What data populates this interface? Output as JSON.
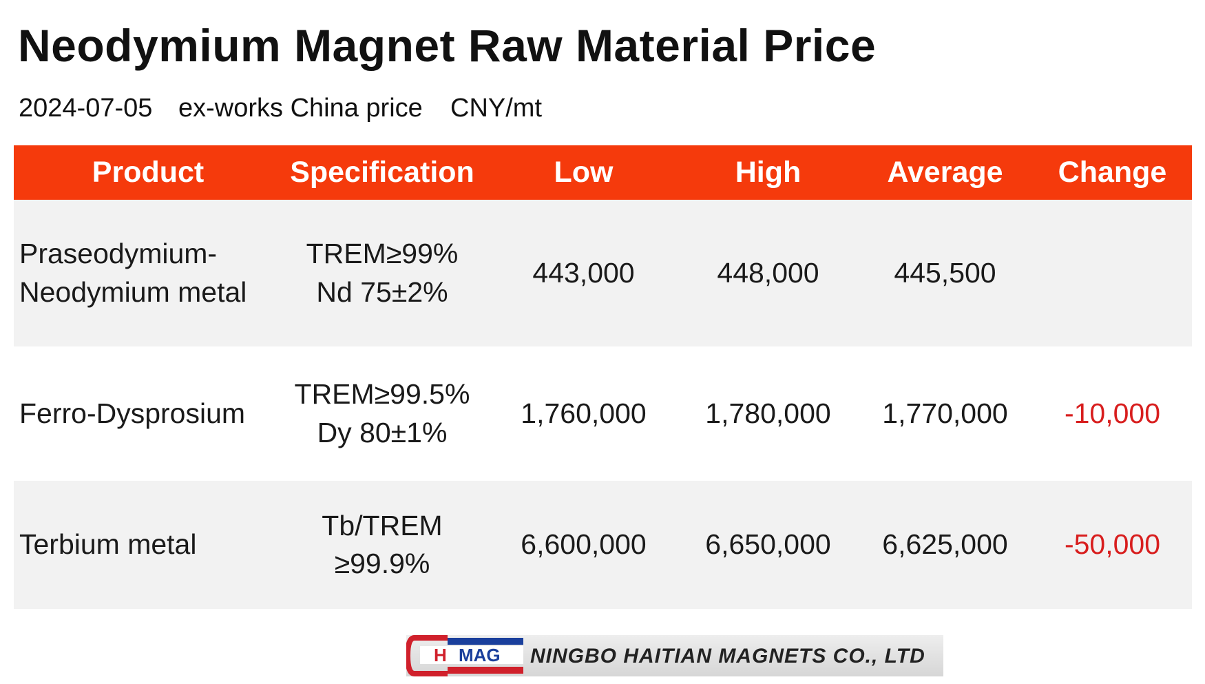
{
  "header": {
    "title": "Neodymium Magnet Raw Material Price",
    "date": "2024-07-05",
    "basis": "ex-works China price",
    "unit": "CNY/mt"
  },
  "table": {
    "columns": [
      "Product",
      "Specification",
      "Low",
      "High",
      "Average",
      "Change"
    ],
    "rows": [
      {
        "product": [
          "Praseodymium-",
          "Neodymium metal"
        ],
        "specification": [
          "TREM≥99%",
          "Nd 75±2%"
        ],
        "low": "443,000",
        "high": "448,000",
        "average": "445,500"
      },
      {
        "product": [
          "Ferro-Dysprosium"
        ],
        "specification": [
          "TREM≥99.5%",
          "Dy 80±1%"
        ],
        "low": "1,760,000",
        "high": "1,780,000",
        "average": "1,770,000",
        "change": "-10,000"
      },
      {
        "product": [
          "Terbium metal"
        ],
        "specification": [
          "Tb/TREM",
          "≥99.9%"
        ],
        "low": "6,600,000",
        "high": "6,650,000",
        "average": "6,625,000",
        "change": "-50,000"
      }
    ]
  },
  "footer": {
    "logo": [
      "H",
      "MAG"
    ],
    "company": "NINGBO HAITIAN MAGNETS CO., LTD"
  }
}
